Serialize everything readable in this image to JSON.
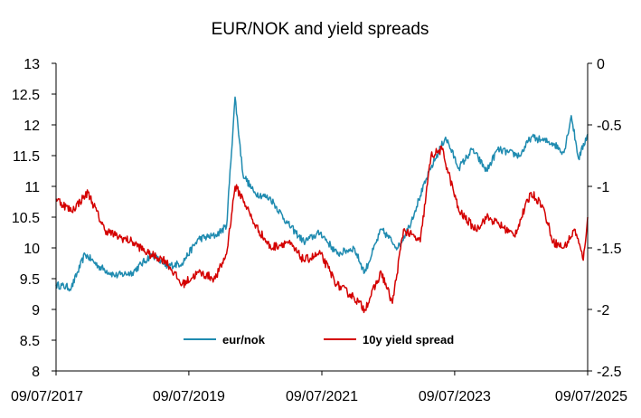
{
  "chart_data": {
    "type": "line",
    "title": "EUR/NOK and yield spreads",
    "xlabel": "",
    "ylabel": "",
    "y2label": "",
    "grid": false,
    "legend_position": "bottom-center",
    "x_ticks": [
      "09/07/2017",
      "09/07/2019",
      "09/07/2021",
      "09/07/2023",
      "09/07/2025"
    ],
    "y_ticks": [
      "13",
      "12.5",
      "12",
      "11.5",
      "11",
      "10.5",
      "10",
      "9.5",
      "9",
      "8.5",
      "8"
    ],
    "y2_ticks": [
      "0",
      "-0.5",
      "-1",
      "-1.5",
      "-2",
      "-2.5"
    ],
    "ylim": [
      8,
      13
    ],
    "y2lim": [
      -2.5,
      0
    ],
    "xlim": [
      "2017-07-09",
      "2025-07-09"
    ],
    "series": [
      {
        "name": "eur/nok",
        "axis": "left",
        "color": "#1f8bb0",
        "x": [
          "2017-07-09",
          "2017-10-01",
          "2017-12-15",
          "2018-03-01",
          "2018-06-01",
          "2018-09-01",
          "2018-12-20",
          "2019-03-01",
          "2019-06-01",
          "2019-09-01",
          "2019-12-01",
          "2020-02-01",
          "2020-03-19",
          "2020-05-01",
          "2020-07-01",
          "2020-10-01",
          "2021-01-01",
          "2021-04-01",
          "2021-07-01",
          "2021-10-01",
          "2022-01-01",
          "2022-03-01",
          "2022-06-01",
          "2022-09-01",
          "2022-11-01",
          "2023-01-01",
          "2023-03-01",
          "2023-05-20",
          "2023-08-01",
          "2023-10-15",
          "2024-01-01",
          "2024-03-01",
          "2024-05-01",
          "2024-07-01",
          "2024-09-01",
          "2024-11-01",
          "2025-01-01",
          "2025-03-01",
          "2025-04-10",
          "2025-05-20",
          "2025-07-09"
        ],
        "values": [
          9.4,
          9.35,
          9.9,
          9.7,
          9.55,
          9.6,
          9.9,
          9.7,
          9.75,
          10.15,
          10.2,
          10.35,
          12.45,
          11.2,
          10.9,
          10.8,
          10.4,
          10.1,
          10.25,
          9.9,
          10.0,
          9.6,
          10.3,
          10.0,
          10.35,
          10.85,
          11.3,
          11.8,
          11.3,
          11.6,
          11.25,
          11.6,
          11.55,
          11.5,
          11.8,
          11.75,
          11.7,
          11.55,
          12.15,
          11.45,
          11.85
        ]
      },
      {
        "name": "10y yield spread",
        "axis": "right",
        "color": "#d40000",
        "x": [
          "2017-07-09",
          "2017-10-01",
          "2018-01-01",
          "2018-04-01",
          "2018-06-01",
          "2018-09-01",
          "2018-12-01",
          "2019-03-01",
          "2019-06-01",
          "2019-09-01",
          "2019-12-01",
          "2020-02-01",
          "2020-03-19",
          "2020-05-01",
          "2020-07-01",
          "2020-10-01",
          "2021-01-01",
          "2021-04-01",
          "2021-07-01",
          "2021-10-01",
          "2022-01-01",
          "2022-03-01",
          "2022-06-01",
          "2022-08-01",
          "2022-10-01",
          "2023-01-01",
          "2023-03-01",
          "2023-05-01",
          "2023-08-01",
          "2023-11-01",
          "2024-01-01",
          "2024-03-01",
          "2024-06-01",
          "2024-09-01",
          "2024-11-01",
          "2025-01-01",
          "2025-03-01",
          "2025-05-01",
          "2025-06-15",
          "2025-07-09"
        ],
        "values": [
          -1.1,
          -1.2,
          -1.05,
          -1.35,
          -1.4,
          -1.45,
          -1.55,
          -1.6,
          -1.8,
          -1.7,
          -1.75,
          -1.55,
          -1.0,
          -1.1,
          -1.3,
          -1.5,
          -1.45,
          -1.6,
          -1.55,
          -1.8,
          -1.9,
          -2.0,
          -1.7,
          -1.95,
          -1.35,
          -1.45,
          -0.75,
          -0.7,
          -1.2,
          -1.35,
          -1.25,
          -1.3,
          -1.4,
          -1.05,
          -1.15,
          -1.45,
          -1.5,
          -1.35,
          -1.6,
          -1.25
        ]
      }
    ]
  }
}
